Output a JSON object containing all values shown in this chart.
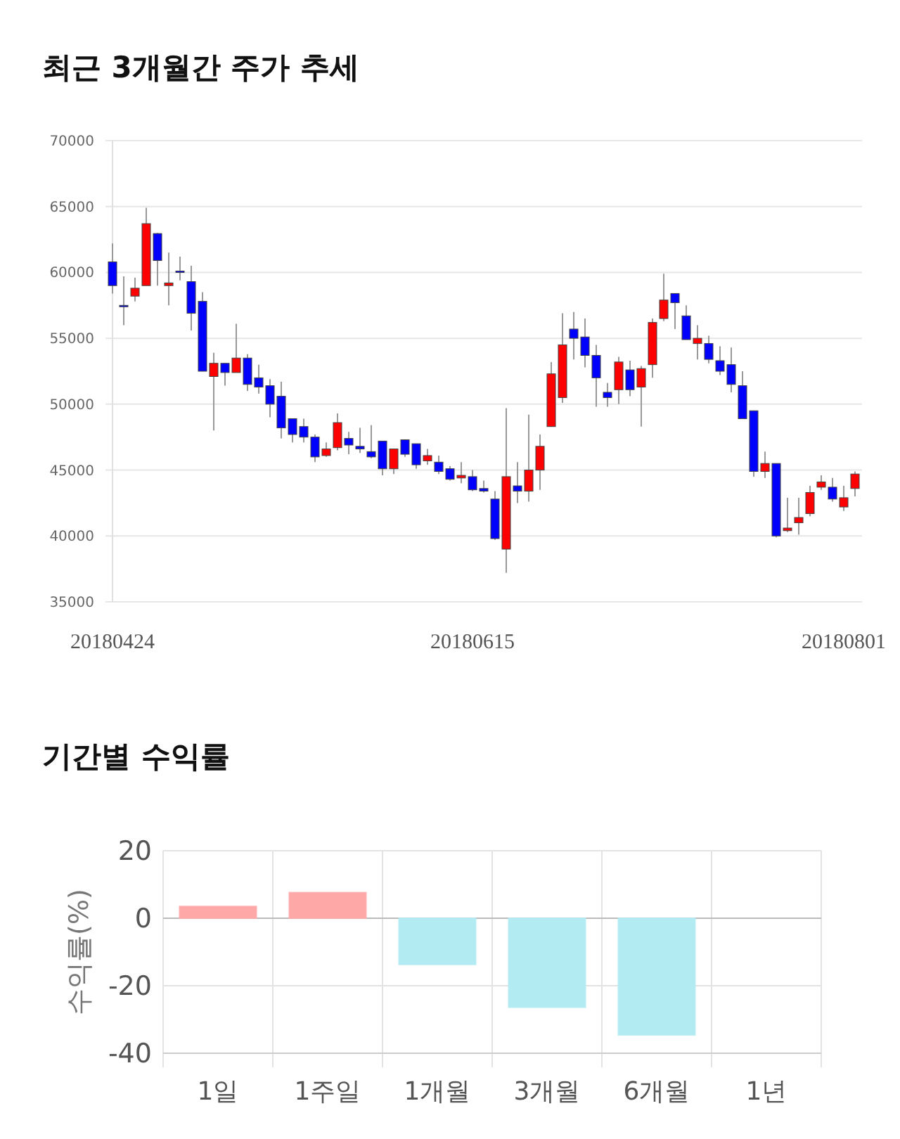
{
  "chart_data": [
    {
      "type": "candlestick",
      "title": "최근 3개월간 주가 추세",
      "grid": "y",
      "ylim": [
        35000,
        70000
      ],
      "yticks": [
        35000,
        40000,
        45000,
        50000,
        55000,
        60000,
        65000,
        70000
      ],
      "categories": [
        "20180424",
        null,
        null,
        null,
        null,
        null,
        null,
        null,
        null,
        null,
        null,
        null,
        null,
        null,
        null,
        null,
        null,
        null,
        null,
        null,
        null,
        null,
        null,
        null,
        null,
        null,
        null,
        null,
        null,
        null,
        null,
        null,
        "20180615",
        null,
        null,
        null,
        null,
        null,
        null,
        null,
        null,
        null,
        null,
        null,
        null,
        null,
        null,
        null,
        null,
        null,
        null,
        null,
        null,
        null,
        null,
        null,
        null,
        null,
        null,
        null,
        null,
        null,
        null,
        null,
        null,
        "20180801",
        null
      ],
      "ohlc": [
        [
          60800,
          62200,
          58400,
          59000
        ],
        [
          57500,
          59700,
          56000,
          57400
        ],
        [
          58200,
          59600,
          57800,
          58800
        ],
        [
          59000,
          64900,
          59000,
          63700
        ],
        [
          62950,
          63000,
          59000,
          60900
        ],
        [
          59000,
          61500,
          57500,
          59200
        ],
        [
          60100,
          61200,
          59400,
          60000
        ],
        [
          59300,
          60500,
          55600,
          56900
        ],
        [
          57800,
          58500,
          52500,
          52500
        ],
        [
          52100,
          53900,
          48000,
          53100
        ],
        [
          53100,
          53100,
          51400,
          52400
        ],
        [
          52400,
          56100,
          52400,
          53500
        ],
        [
          53500,
          53800,
          51000,
          51500
        ],
        [
          52000,
          53000,
          50800,
          51300
        ],
        [
          51400,
          51900,
          49000,
          50000
        ],
        [
          50600,
          51700,
          47400,
          48200
        ],
        [
          48900,
          48900,
          47100,
          47700
        ],
        [
          48300,
          48900,
          47100,
          47500
        ],
        [
          47500,
          47700,
          45600,
          46000
        ],
        [
          46100,
          47100,
          46000,
          46600
        ],
        [
          46700,
          49300,
          46500,
          48600
        ],
        [
          47400,
          47900,
          46200,
          46900
        ],
        [
          46800,
          48200,
          46300,
          46600
        ],
        [
          46400,
          48400,
          45900,
          46000
        ],
        [
          47200,
          47200,
          44600,
          45100
        ],
        [
          45100,
          46600,
          44700,
          46600
        ],
        [
          47300,
          47300,
          46000,
          46200
        ],
        [
          47000,
          47000,
          45100,
          45400
        ],
        [
          45700,
          46600,
          45400,
          46100
        ],
        [
          45600,
          46100,
          44700,
          44900
        ],
        [
          45100,
          45300,
          44200,
          44300
        ],
        [
          44400,
          45600,
          44000,
          44600
        ],
        [
          44500,
          45000,
          43400,
          43500
        ],
        [
          43600,
          44200,
          43300,
          43400
        ],
        [
          42800,
          43400,
          39700,
          39800
        ],
        [
          39000,
          49700,
          37200,
          44500
        ],
        [
          43800,
          45600,
          42500,
          43400
        ],
        [
          43400,
          49200,
          42600,
          45000
        ],
        [
          45000,
          47700,
          43500,
          46800
        ],
        [
          48300,
          53200,
          48300,
          52300
        ],
        [
          50500,
          56900,
          50100,
          54500
        ],
        [
          55700,
          57000,
          53400,
          55000
        ],
        [
          55100,
          56500,
          52800,
          53700
        ],
        [
          53700,
          54500,
          49800,
          52000
        ],
        [
          50900,
          51600,
          49800,
          50500
        ],
        [
          51100,
          53600,
          50000,
          53200
        ],
        [
          52600,
          53300,
          50600,
          51100
        ],
        [
          51300,
          52900,
          48300,
          52700
        ],
        [
          53000,
          56500,
          52000,
          56200
        ],
        [
          56500,
          59900,
          56300,
          57900
        ],
        [
          58400,
          58400,
          55700,
          57700
        ],
        [
          56700,
          57500,
          54900,
          54900
        ],
        [
          54600,
          56000,
          53400,
          55000
        ],
        [
          54600,
          55200,
          53100,
          53400
        ],
        [
          53300,
          54400,
          52200,
          52500
        ],
        [
          53000,
          54300,
          50900,
          51500
        ],
        [
          51400,
          52500,
          48900,
          48900
        ],
        [
          49500,
          49500,
          44500,
          44900
        ],
        [
          44900,
          46400,
          44400,
          45500
        ],
        [
          45500,
          45500,
          39900,
          40000
        ],
        [
          40400,
          42900,
          40300,
          40600
        ],
        [
          41000,
          42900,
          40100,
          41400
        ],
        [
          41700,
          43800,
          41500,
          43300
        ],
        [
          43700,
          44600,
          43500,
          44100
        ],
        [
          43700,
          44400,
          42600,
          42800
        ],
        [
          42200,
          43800,
          41900,
          42900
        ],
        [
          43600,
          44900,
          43000,
          44700
        ]
      ],
      "colors": [
        "#0000ff",
        "#0000ff",
        "#ff0000",
        "#ff0000",
        "#0000ff",
        "#ff0000",
        "#0000ff",
        "#0000ff",
        "#0000ff",
        "#ff0000",
        "#0000ff",
        "#ff0000",
        "#0000ff",
        "#0000ff",
        "#0000ff",
        "#0000ff",
        "#0000ff",
        "#0000ff",
        "#0000ff",
        "#ff0000",
        "#ff0000",
        "#0000ff",
        "#0000ff",
        "#0000ff",
        "#0000ff",
        "#ff0000",
        "#0000ff",
        "#0000ff",
        "#ff0000",
        "#0000ff",
        "#0000ff",
        "#ff0000",
        "#0000ff",
        "#0000ff",
        "#0000ff",
        "#ff0000",
        "#0000ff",
        "#ff0000",
        "#ff0000",
        "#ff0000",
        "#ff0000",
        "#0000ff",
        "#0000ff",
        "#0000ff",
        "#0000ff",
        "#ff0000",
        "#0000ff",
        "#ff0000",
        "#ff0000",
        "#ff0000",
        "#0000ff",
        "#0000ff",
        "#ff0000",
        "#0000ff",
        "#0000ff",
        "#0000ff",
        "#0000ff",
        "#0000ff",
        "#ff0000",
        "#0000ff",
        "#ff0000",
        "#ff0000",
        "#ff0000",
        "#ff0000",
        "#0000ff",
        "#ff0000",
        "#ff0000"
      ]
    },
    {
      "type": "bar",
      "title": "기간별 수익률",
      "ylabel": "수익률(%)",
      "grid": true,
      "ylim": [
        -40,
        20
      ],
      "yticks": [
        -40,
        -20,
        0,
        20
      ],
      "categories": [
        "1일",
        "1주일",
        "1개월",
        "3개월",
        "6개월",
        "1년"
      ],
      "values": [
        3.5,
        7.6,
        -13.7,
        -26.4,
        -34.6,
        null
      ],
      "colors": [
        "#ffa8a8",
        "#ffa8a8",
        "#b2ebf2",
        "#b2ebf2",
        "#b2ebf2",
        null
      ]
    }
  ]
}
